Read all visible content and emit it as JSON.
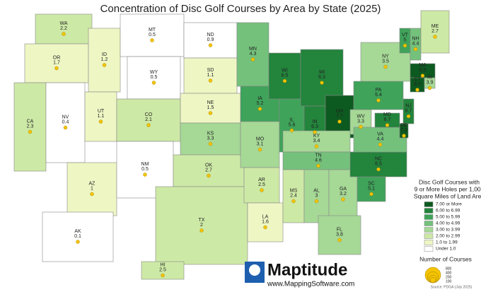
{
  "title": "Concentration of Disc Golf Courses by Area by State (2025)",
  "states": [
    {
      "abbr": "WA",
      "value": 2.2
    },
    {
      "abbr": "OR",
      "value": 1.7
    },
    {
      "abbr": "CA",
      "value": 2.3
    },
    {
      "abbr": "NV",
      "value": 0.4
    },
    {
      "abbr": "ID",
      "value": 1.2
    },
    {
      "abbr": "MT",
      "value": 0.5
    },
    {
      "abbr": "WY",
      "value": 0.5
    },
    {
      "abbr": "UT",
      "value": 1.1
    },
    {
      "abbr": "AZ",
      "value": 1.0
    },
    {
      "abbr": "CO",
      "value": 2.1
    },
    {
      "abbr": "NM",
      "value": 0.5
    },
    {
      "abbr": "ND",
      "value": 0.9
    },
    {
      "abbr": "SD",
      "value": 1.1
    },
    {
      "abbr": "NE",
      "value": 1.5
    },
    {
      "abbr": "KS",
      "value": 3.3
    },
    {
      "abbr": "OK",
      "value": 2.7
    },
    {
      "abbr": "TX",
      "value": 2.0
    },
    {
      "abbr": "MN",
      "value": 4.3
    },
    {
      "abbr": "IA",
      "value": 5.2
    },
    {
      "abbr": "MO",
      "value": 3.1
    },
    {
      "abbr": "AR",
      "value": 2.5
    },
    {
      "abbr": "LA",
      "value": 1.6
    },
    {
      "abbr": "WI",
      "value": 6.5
    },
    {
      "abbr": "IL",
      "value": 5.6
    },
    {
      "abbr": "MI",
      "value": 6.3
    },
    {
      "abbr": "IN",
      "value": 6.3
    },
    {
      "abbr": "OH",
      "value": 7.7
    },
    {
      "abbr": "KY",
      "value": 3.4
    },
    {
      "abbr": "TN",
      "value": 4.6
    },
    {
      "abbr": "MS",
      "value": 2.4
    },
    {
      "abbr": "AL",
      "value": 3.0
    },
    {
      "abbr": "GA",
      "value": 3.2
    },
    {
      "abbr": "FL",
      "value": 3.8
    },
    {
      "abbr": "SC",
      "value": 5.1
    },
    {
      "abbr": "NC",
      "value": 6.5
    },
    {
      "abbr": "WV",
      "value": 3.3
    },
    {
      "abbr": "VA",
      "value": 4.4
    },
    {
      "abbr": "PA",
      "value": 5.4
    },
    {
      "abbr": "NY",
      "value": 3.5
    },
    {
      "abbr": "VT",
      "value": 5.0
    },
    {
      "abbr": "NH",
      "value": 4.4
    },
    {
      "abbr": "ME",
      "value": 2.7
    },
    {
      "abbr": "MA",
      "value": 8.5
    },
    {
      "abbr": "CT",
      "value": 8.5
    },
    {
      "abbr": "RI",
      "value": 3.9
    },
    {
      "abbr": "NJ",
      "value": 6.7
    },
    {
      "abbr": "DE",
      "value": 7.2
    },
    {
      "abbr": "MD",
      "value": 6.7
    },
    {
      "abbr": "AK",
      "value": 0.1
    },
    {
      "abbr": "HI",
      "value": 2.5
    }
  ],
  "legend": {
    "title": [
      "Disc Golf Courses with",
      "9 or More Holes per 1,000",
      "Square Miles of Land Area"
    ],
    "classes": [
      {
        "min": 7,
        "label": "7.00  or More",
        "color": "#0d5a20"
      },
      {
        "min": 6,
        "label": "6.00 to 6.99",
        "color": "#23843c"
      },
      {
        "min": 5,
        "label": "5.00 to 5.99",
        "color": "#3fa35a"
      },
      {
        "min": 4,
        "label": "4.00 to 4.99",
        "color": "#74c17c"
      },
      {
        "min": 3,
        "label": "3.00 to 3.99",
        "color": "#a6d896"
      },
      {
        "min": 2,
        "label": "2.00 to 2.99",
        "color": "#cde9a6"
      },
      {
        "min": 1,
        "label": "1.0 to 1.99",
        "color": "#eef6c4"
      },
      {
        "min": 0,
        "label": "Under 1.0",
        "color": "#ffffff"
      }
    ]
  },
  "size_legend": {
    "title": "Number of Courses",
    "values": [
      800,
      400,
      200,
      100
    ]
  },
  "logo": {
    "name": "Maptitude",
    "url": "www.MappingSoftware.com"
  },
  "source": "Source: PDGA (July 2025)"
}
